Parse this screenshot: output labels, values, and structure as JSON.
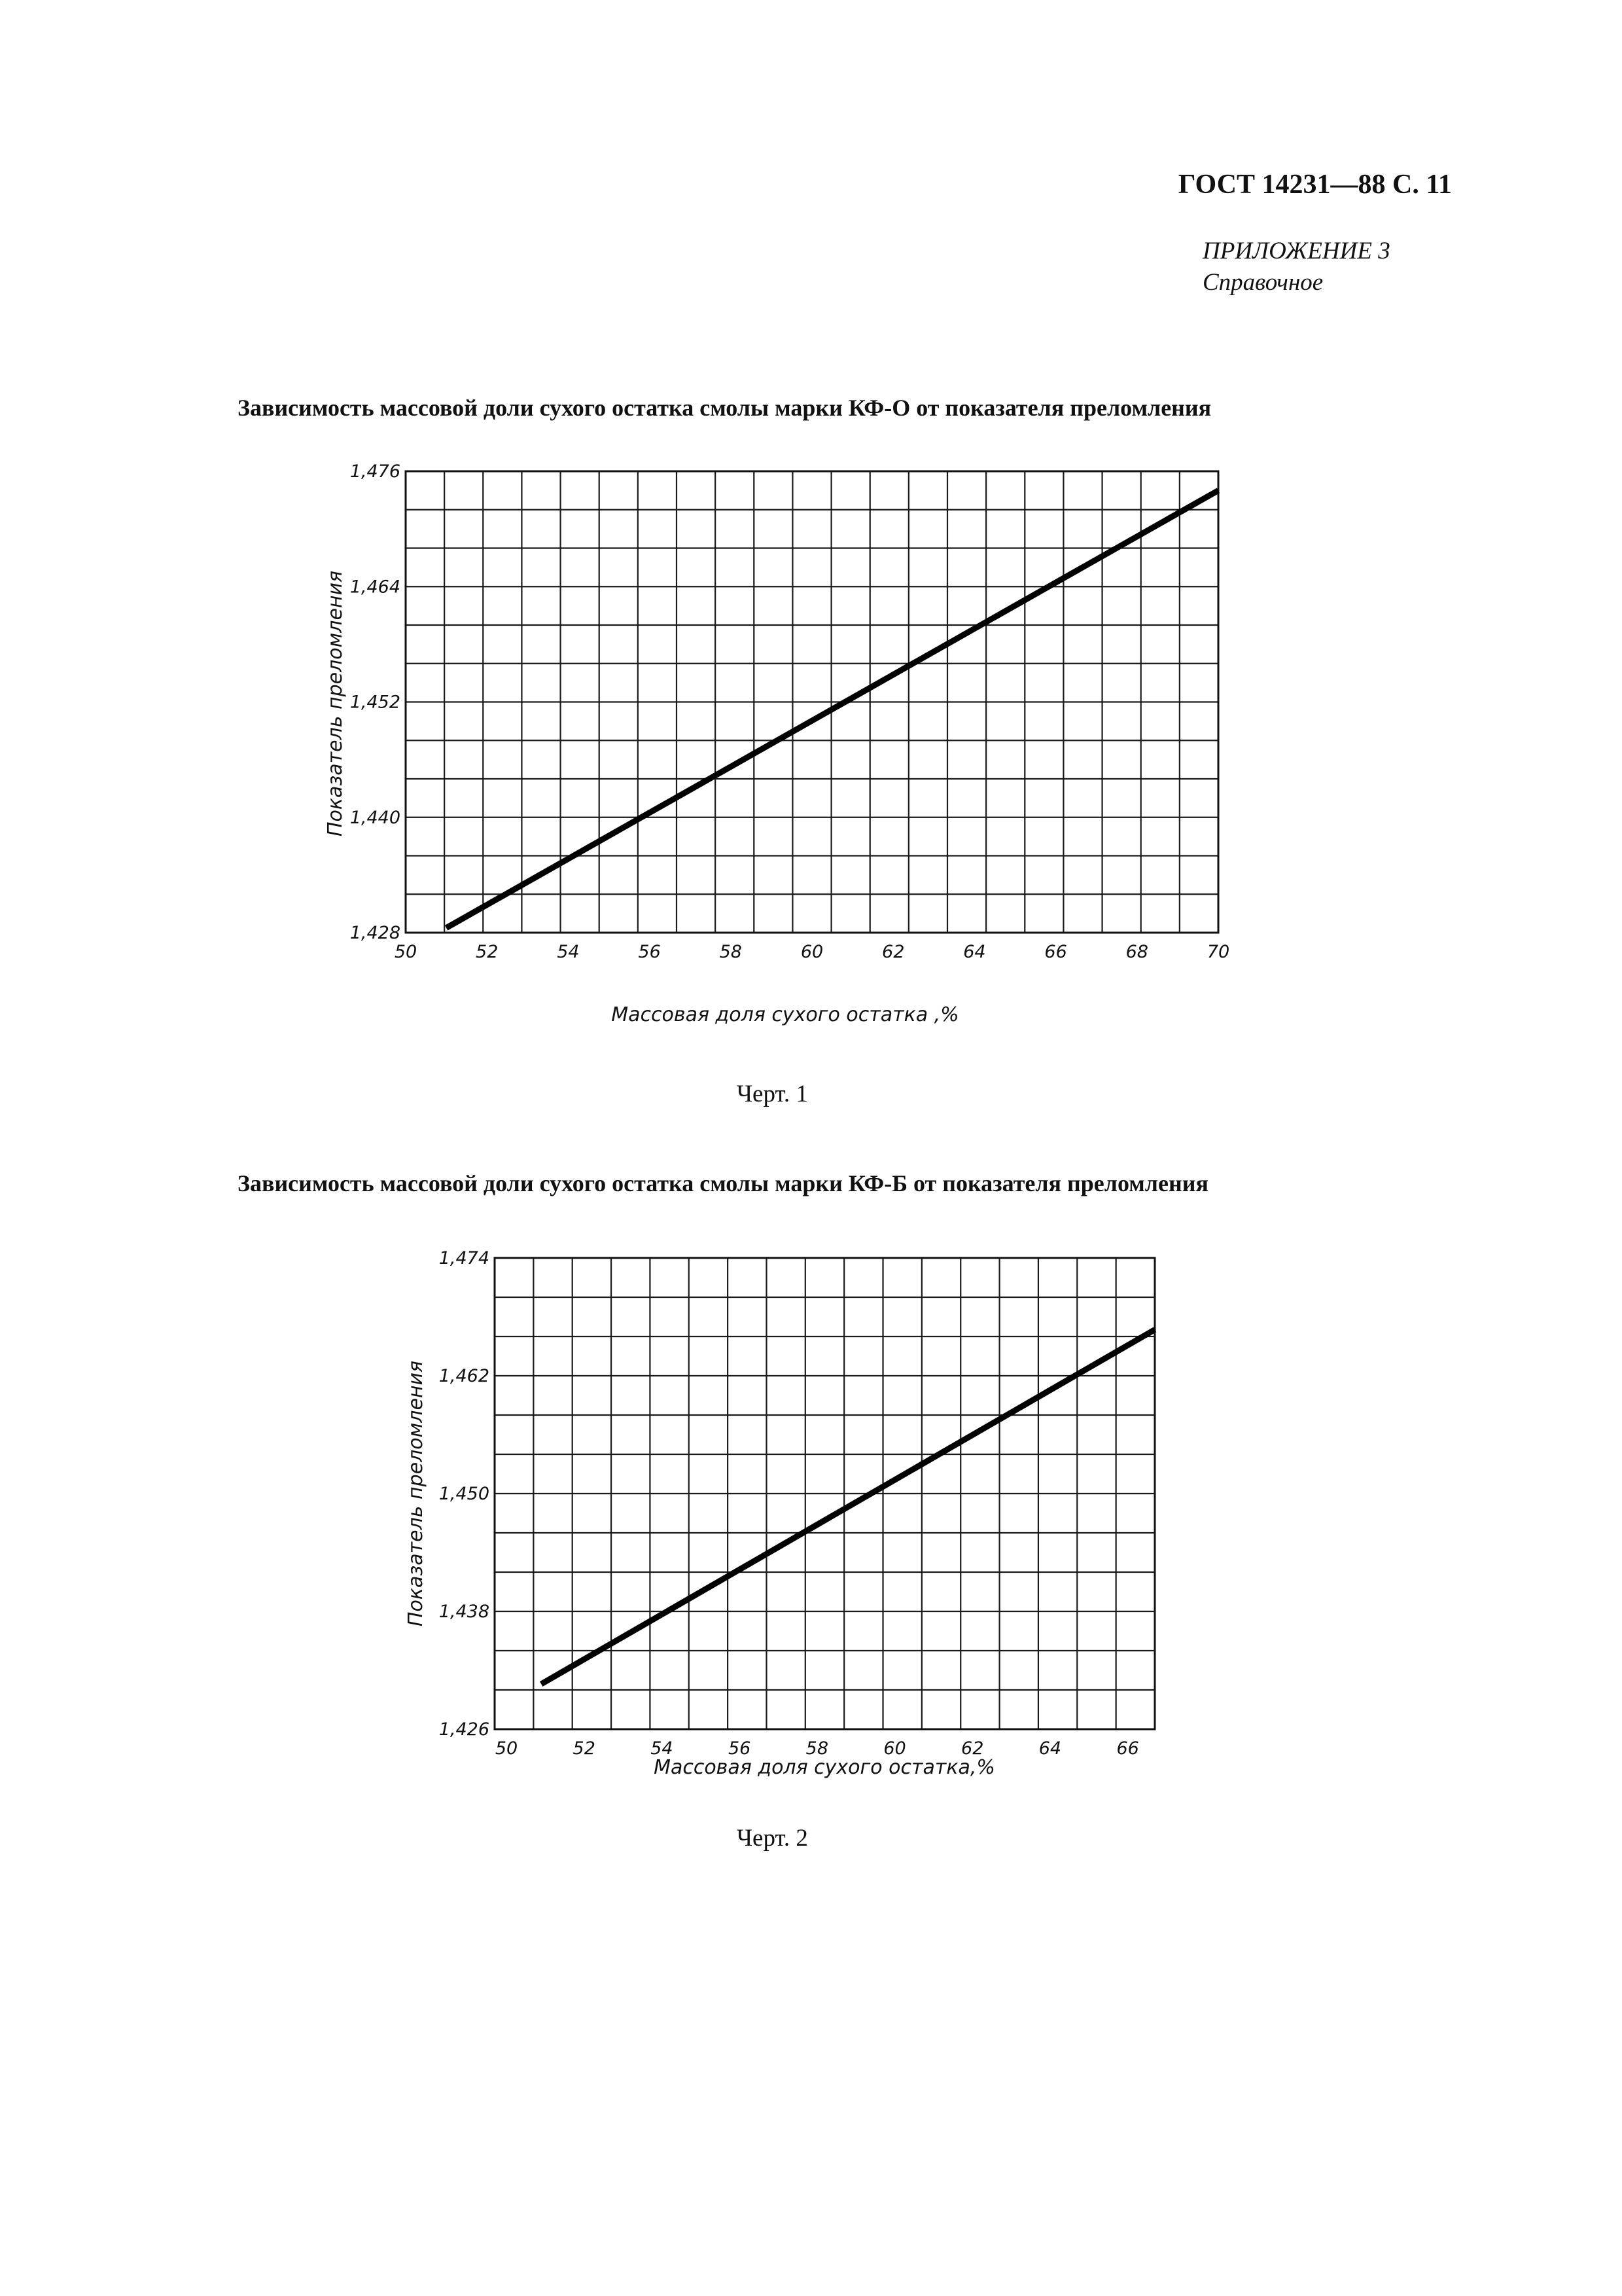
{
  "header": {
    "doc_ref": "ГОСТ 14231—88 С. 11",
    "appendix": "ПРИЛОЖЕНИЕ 3",
    "appendix_note": "Справочное"
  },
  "charts": [
    {
      "title": "Зависимость массовой доли сухого остатка смолы марки КФ-О от показателя преломления",
      "caption": "Черт. 1"
    },
    {
      "title": "Зависимость массовой доли сухого остатка смолы марки КФ-Б от показателя преломления",
      "caption": "Черт. 2"
    }
  ],
  "chart_data": [
    {
      "type": "line",
      "title": "Зависимость массовой доли сухого остатка смолы марки КФ-О от показателя преломления",
      "xlabel": "Массовая доля сухого остатка ,%",
      "ylabel": "Показатель преломления",
      "xlim": [
        50,
        70
      ],
      "ylim": [
        1.428,
        1.476
      ],
      "x_ticks": [
        50,
        52,
        54,
        56,
        58,
        60,
        62,
        64,
        66,
        68,
        70
      ],
      "x_tick_labels": [
        "50",
        "52",
        "54",
        "56",
        "58",
        "60",
        "62",
        "64",
        "66",
        "68",
        "70"
      ],
      "y_ticks": [
        1.428,
        1.44,
        1.452,
        1.464,
        1.476
      ],
      "y_tick_labels": [
        "1,428",
        "1,440",
        "1,452",
        "1,464",
        "1,476"
      ],
      "grid": true,
      "series": [
        {
          "x": [
            51.0,
            70.0
          ],
          "y": [
            1.4285,
            1.474
          ]
        }
      ]
    },
    {
      "type": "line",
      "title": "Зависимость массовой доли сухого остатка смолы марки КФ-Б от показателя преломления",
      "xlabel": "Массовая доля сухого остатка,%",
      "ylabel": "Показатель преломления",
      "xlim": [
        50,
        67
      ],
      "ylim": [
        1.426,
        1.474
      ],
      "x_ticks": [
        50,
        52,
        54,
        56,
        58,
        60,
        62,
        64,
        66
      ],
      "x_tick_labels": [
        "50",
        "52",
        "54",
        "56",
        "58",
        "60",
        "62",
        "64",
        "66"
      ],
      "y_ticks": [
        1.426,
        1.438,
        1.45,
        1.462,
        1.474
      ],
      "y_tick_labels": [
        "1,426",
        "1,438",
        "1,450",
        "1,462",
        "1,474"
      ],
      "grid": true,
      "series": [
        {
          "x": [
            51.2,
            67.0
          ],
          "y": [
            1.4306,
            1.4667
          ]
        }
      ]
    }
  ]
}
